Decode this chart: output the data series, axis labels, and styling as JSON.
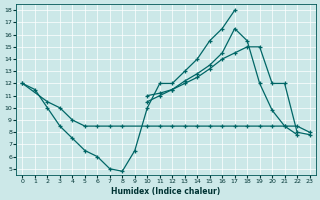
{
  "xlabel": "Humidex (Indice chaleur)",
  "bg_color": "#cce8e8",
  "line_color": "#006666",
  "grid_color": "#aacccc",
  "xlim": [
    -0.5,
    23.5
  ],
  "ylim": [
    4.5,
    18.5
  ],
  "xticks": [
    0,
    1,
    2,
    3,
    4,
    5,
    6,
    7,
    8,
    9,
    10,
    11,
    12,
    13,
    14,
    15,
    16,
    17,
    18,
    19,
    20,
    21,
    22,
    23
  ],
  "yticks": [
    5,
    6,
    7,
    8,
    9,
    10,
    11,
    12,
    13,
    14,
    15,
    16,
    17,
    18
  ],
  "line1_x": [
    0,
    1,
    2,
    3,
    4,
    5,
    6,
    7,
    8,
    9,
    10,
    11,
    12,
    13,
    14,
    15,
    16,
    17
  ],
  "line1_y": [
    12.0,
    11.5,
    10.0,
    8.5,
    7.5,
    6.5,
    6.0,
    5.0,
    4.8,
    6.5,
    10.0,
    12.0,
    12.0,
    13.0,
    14.0,
    15.5,
    16.5,
    18.0
  ],
  "line2_x": [
    0,
    2,
    3,
    4,
    5,
    6,
    7,
    8,
    10,
    11,
    12,
    13,
    14,
    15,
    16,
    17,
    18,
    19,
    20,
    21,
    22,
    23
  ],
  "line2_y": [
    12.0,
    10.5,
    10.0,
    9.0,
    8.5,
    8.5,
    8.5,
    8.5,
    8.5,
    8.5,
    8.5,
    8.5,
    8.5,
    8.5,
    8.5,
    8.5,
    8.5,
    8.5,
    8.5,
    8.5,
    8.5,
    8.0
  ],
  "line3_x": [
    10,
    11,
    12,
    13,
    14,
    15,
    16,
    17,
    18,
    19,
    20,
    21,
    22
  ],
  "line3_y": [
    10.5,
    11.0,
    11.5,
    12.2,
    12.8,
    13.5,
    14.5,
    16.5,
    15.5,
    12.0,
    9.8,
    8.5,
    7.8
  ],
  "line4_x": [
    10,
    11,
    12,
    13,
    14,
    15,
    16,
    17,
    18,
    19,
    20,
    21,
    22,
    23
  ],
  "line4_y": [
    11.0,
    11.2,
    11.5,
    12.0,
    12.5,
    13.2,
    14.0,
    14.5,
    15.0,
    15.0,
    12.0,
    12.0,
    8.0,
    7.8
  ]
}
